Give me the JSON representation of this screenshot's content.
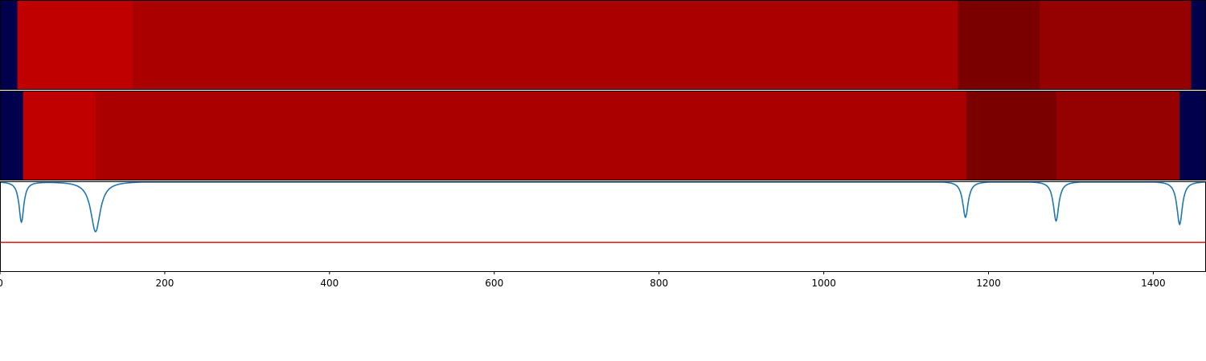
{
  "chart_data": [
    {
      "type": "heatmap",
      "xlim": [
        0,
        1464
      ],
      "segments": [
        {
          "start": 0,
          "end": 21,
          "color": "#00004d"
        },
        {
          "start": 21,
          "end": 161,
          "color": "#c00000"
        },
        {
          "start": 161,
          "end": 1163,
          "color": "#aa0000"
        },
        {
          "start": 1163,
          "end": 1262,
          "color": "#7a0000"
        },
        {
          "start": 1262,
          "end": 1446,
          "color": "#950000"
        },
        {
          "start": 1446,
          "end": 1464,
          "color": "#00004d"
        }
      ]
    },
    {
      "type": "heatmap",
      "xlim": [
        0,
        1464
      ],
      "segments": [
        {
          "start": 0,
          "end": 28,
          "color": "#00004d"
        },
        {
          "start": 28,
          "end": 116,
          "color": "#c00000"
        },
        {
          "start": 116,
          "end": 1173,
          "color": "#aa0000"
        },
        {
          "start": 1173,
          "end": 1282,
          "color": "#7a0000"
        },
        {
          "start": 1282,
          "end": 1432,
          "color": "#950000"
        },
        {
          "start": 1432,
          "end": 1464,
          "color": "#00004d"
        }
      ]
    },
    {
      "type": "line",
      "xlim": [
        0,
        1464
      ],
      "ylim": [
        -1.0,
        0.0
      ],
      "baseline": 0.0,
      "threshold": -0.68,
      "line_color": "#1f77b4",
      "threshold_color": "#e8261c",
      "dips": [
        {
          "center": 26,
          "depth": -0.45,
          "width": 3.5
        },
        {
          "center": 116,
          "depth": -0.56,
          "width": 7
        },
        {
          "center": 1172,
          "depth": -0.4,
          "width": 4
        },
        {
          "center": 1282,
          "depth": -0.44,
          "width": 4
        },
        {
          "center": 1432,
          "depth": -0.48,
          "width": 4
        }
      ],
      "xticks": [
        0,
        200,
        400,
        600,
        800,
        1000,
        1200,
        1400
      ],
      "xtick_labels": [
        "0",
        "200",
        "400",
        "600",
        "800",
        "1000",
        "1200",
        "1400"
      ]
    }
  ]
}
